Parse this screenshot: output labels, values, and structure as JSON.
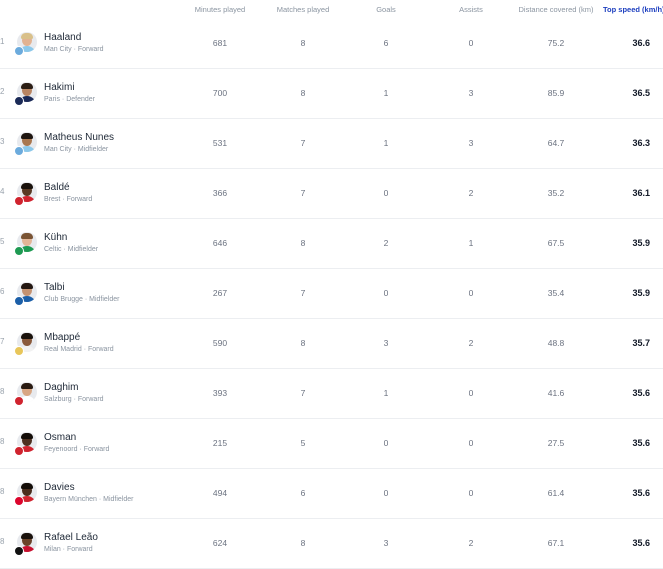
{
  "columns": {
    "minutes": "Minutes played",
    "matches": "Matches played",
    "goals": "Goals",
    "assists": "Assists",
    "distance": "Distance covered (km)",
    "top_speed": "Top speed (km/h)"
  },
  "rows": [
    {
      "rank": "1",
      "name": "Haaland",
      "club": "Man City",
      "position": "Forward",
      "minutes": "681",
      "matches": "8",
      "goals": "6",
      "assists": "0",
      "distance": "75.2",
      "speed": "36.6",
      "skin": "#e2b291",
      "hair": "#d9c08a",
      "shirt": "#8cc8ea",
      "badge": "#6cabdd"
    },
    {
      "rank": "2",
      "name": "Hakimi",
      "club": "Paris",
      "position": "Defender",
      "minutes": "700",
      "matches": "8",
      "goals": "1",
      "assists": "3",
      "distance": "85.9",
      "speed": "36.5",
      "skin": "#b98562",
      "hair": "#2b1d14",
      "shirt": "#1b2a57",
      "badge": "#1b2a57"
    },
    {
      "rank": "3",
      "name": "Matheus Nunes",
      "club": "Man City",
      "position": "Midfielder",
      "minutes": "531",
      "matches": "7",
      "goals": "1",
      "assists": "3",
      "distance": "64.7",
      "speed": "36.3",
      "skin": "#a9774f",
      "hair": "#1e1510",
      "shirt": "#8cc8ea",
      "badge": "#6cabdd"
    },
    {
      "rank": "4",
      "name": "Baldé",
      "club": "Brest",
      "position": "Forward",
      "minutes": "366",
      "matches": "7",
      "goals": "0",
      "assists": "2",
      "distance": "35.2",
      "speed": "36.1",
      "skin": "#5a3a24",
      "hair": "#1a120c",
      "shirt": "#d0232e",
      "badge": "#d0232e"
    },
    {
      "rank": "5",
      "name": "Kühn",
      "club": "Celtic",
      "position": "Midfielder",
      "minutes": "646",
      "matches": "8",
      "goals": "2",
      "assists": "1",
      "distance": "67.5",
      "speed": "35.9",
      "skin": "#e3b596",
      "hair": "#7a5434",
      "shirt": "#1e9a52",
      "badge": "#1e9a52"
    },
    {
      "rank": "6",
      "name": "Talbi",
      "club": "Club Brugge",
      "position": "Midfielder",
      "minutes": "267",
      "matches": "7",
      "goals": "0",
      "assists": "0",
      "distance": "35.4",
      "speed": "35.9",
      "skin": "#c49271",
      "hair": "#231711",
      "shirt": "#1c5fa8",
      "badge": "#1c5fa8"
    },
    {
      "rank": "7",
      "name": "Mbappé",
      "club": "Real Madrid",
      "position": "Forward",
      "minutes": "590",
      "matches": "8",
      "goals": "3",
      "assists": "2",
      "distance": "48.8",
      "speed": "35.7",
      "skin": "#8a5a3c",
      "hair": "#1a120c",
      "shirt": "#f2f2f2",
      "badge": "#e8c65a"
    },
    {
      "rank": "8",
      "name": "Daghim",
      "club": "Salzburg",
      "position": "Forward",
      "minutes": "393",
      "matches": "7",
      "goals": "1",
      "assists": "0",
      "distance": "41.6",
      "speed": "35.6",
      "skin": "#d8a683",
      "hair": "#2a1b12",
      "shirt": "#ffffff",
      "badge": "#d0232e"
    },
    {
      "rank": "8",
      "name": "Osman",
      "club": "Feyenoord",
      "position": "Forward",
      "minutes": "215",
      "matches": "5",
      "goals": "0",
      "assists": "0",
      "distance": "27.5",
      "speed": "35.6",
      "skin": "#4e3020",
      "hair": "#140d08",
      "shirt": "#d0232e",
      "badge": "#d0232e"
    },
    {
      "rank": "8",
      "name": "Davies",
      "club": "Bayern München",
      "position": "Midfielder",
      "minutes": "494",
      "matches": "6",
      "goals": "0",
      "assists": "0",
      "distance": "61.4",
      "speed": "35.6",
      "skin": "#4a2d1d",
      "hair": "#140d08",
      "shirt": "#d0232e",
      "badge": "#dc052d"
    },
    {
      "rank": "8",
      "name": "Rafael Leão",
      "club": "Milan",
      "position": "Forward",
      "minutes": "624",
      "matches": "8",
      "goals": "3",
      "assists": "2",
      "distance": "67.1",
      "speed": "35.6",
      "skin": "#6b4329",
      "hair": "#1a120c",
      "shirt": "#c8102e",
      "badge": "#111111"
    }
  ]
}
